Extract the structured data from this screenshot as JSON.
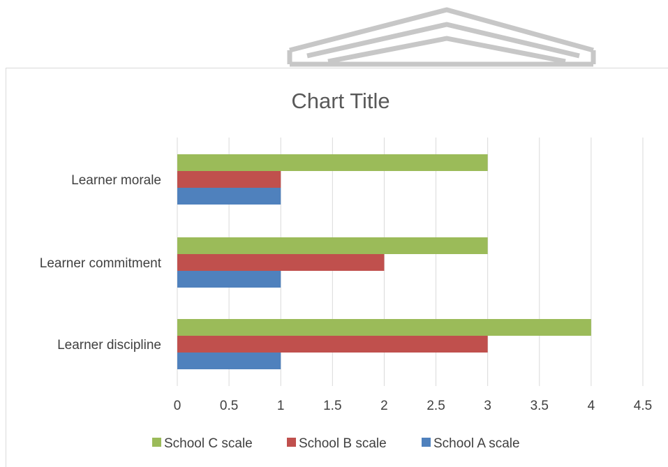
{
  "chart_data": {
    "type": "bar",
    "orientation": "horizontal",
    "title": "Chart Title",
    "categories": [
      "Learner discipline",
      "Learner commitment",
      "Learner morale"
    ],
    "series": [
      {
        "name": "School A scale",
        "values": [
          1,
          1,
          1
        ],
        "color": "#4f81bd"
      },
      {
        "name": "School B scale",
        "values": [
          3,
          2,
          1
        ],
        "color": "#c0504d"
      },
      {
        "name": "School C scale",
        "values": [
          4,
          3,
          3
        ],
        "color": "#9bbb59"
      }
    ],
    "x_ticks": [
      "0",
      "0.5",
      "1",
      "1.5",
      "2",
      "2.5",
      "3",
      "3.5",
      "4",
      "4.5"
    ],
    "xlim": [
      0,
      4.5
    ],
    "grid": "vertical",
    "legend_position": "bottom",
    "legend_order": [
      "School C scale",
      "School B scale",
      "School A scale"
    ]
  }
}
